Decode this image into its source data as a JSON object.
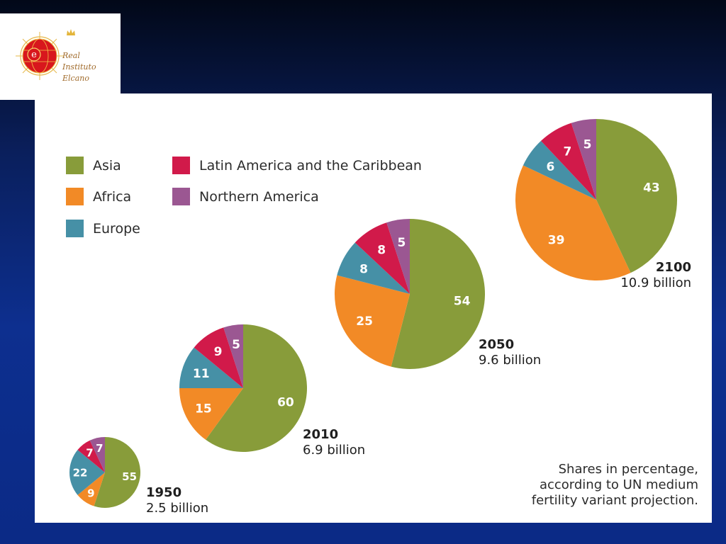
{
  "logo": {
    "lines": [
      "Real",
      "Instituto",
      "Elcano"
    ],
    "emblem_letter": "e"
  },
  "colors": {
    "Asia": "#889c3a",
    "Africa": "#f28a26",
    "Europe": "#4690a6",
    "Latin America and the Caribbean": "#d11a4a",
    "Northern America": "#9b5792"
  },
  "chart_data": {
    "type": "pie",
    "legend": [
      "Asia",
      "Africa",
      "Europe",
      "Latin America and the Caribbean",
      "Northern America"
    ],
    "note": [
      "Shares in percentage,",
      "according to UN medium",
      "fertility variant projection."
    ],
    "pies": [
      {
        "year": "1950",
        "total": "2.5 billion",
        "values": [
          55,
          9,
          22,
          7,
          7
        ]
      },
      {
        "year": "2010",
        "total": "6.9 billion",
        "values": [
          60,
          15,
          11,
          9,
          5
        ]
      },
      {
        "year": "2050",
        "total": "9.6 billion",
        "values": [
          54,
          25,
          8,
          8,
          5
        ]
      },
      {
        "year": "2100",
        "total": "10.9 billion",
        "values": [
          43,
          39,
          6,
          7,
          5
        ]
      }
    ]
  }
}
